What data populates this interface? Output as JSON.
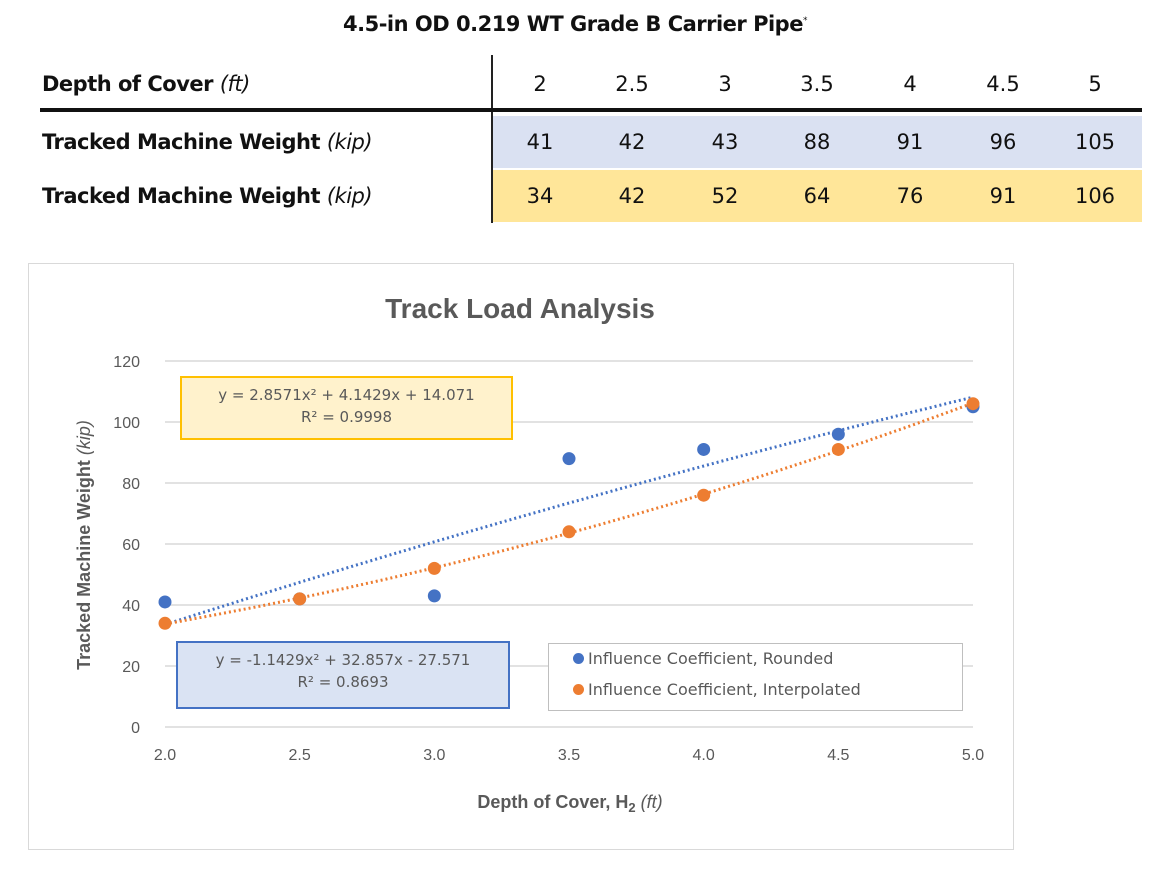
{
  "table": {
    "title": "4.5-in OD 0.219 WT Grade B Carrier Pipe",
    "title_mark": "*",
    "header_label": "Depth of Cover",
    "header_unit": "(ft)",
    "depths": [
      "2",
      "2.5",
      "3",
      "3.5",
      "4",
      "4.5",
      "5"
    ],
    "rows": [
      {
        "label": "Tracked Machine Weight",
        "unit": "(kip)",
        "values": [
          "41",
          "42",
          "43",
          "88",
          "91",
          "96",
          "105"
        ]
      },
      {
        "label": "Tracked Machine Weight",
        "unit": "(kip)",
        "values": [
          "34",
          "42",
          "52",
          "64",
          "76",
          "91",
          "106"
        ]
      }
    ]
  },
  "chart_data": {
    "type": "scatter",
    "title": "Track Load Analysis",
    "xlabel": "Depth of Cover, H",
    "xlabel_sub": "2",
    "xlabel_unit": "(ft)",
    "ylabel": "Tracked Machine Weight",
    "ylabel_unit": "(kip)",
    "xlim": [
      2.0,
      5.0
    ],
    "ylim": [
      0,
      120
    ],
    "xticks": [
      "2.0",
      "2.5",
      "3.0",
      "3.5",
      "4.0",
      "4.5",
      "5.0"
    ],
    "yticks": [
      "0",
      "20",
      "40",
      "60",
      "80",
      "100",
      "120"
    ],
    "grid": true,
    "legend_position": "bottom-right",
    "x": [
      2,
      2.5,
      3,
      3.5,
      4,
      4.5,
      5
    ],
    "series": [
      {
        "name": "Influence Coefficient, Rounded",
        "color": "#4472c4",
        "values": [
          41,
          42,
          43,
          88,
          91,
          96,
          105
        ],
        "trendline": {
          "coeffs": [
            -1.1429,
            32.857,
            -27.571
          ],
          "equation": "y = -1.1429x² + 32.857x - 27.571",
          "r2": "R² = 0.8693"
        }
      },
      {
        "name": "Influence Coefficient, Interpolated",
        "color": "#ed7d31",
        "values": [
          34,
          42,
          52,
          64,
          76,
          91,
          106
        ],
        "trendline": {
          "coeffs": [
            2.8571,
            4.1429,
            14.071
          ],
          "equation": "y = 2.8571x² + 4.1429x + 14.071",
          "r2": "R² = 0.9998"
        }
      }
    ]
  }
}
